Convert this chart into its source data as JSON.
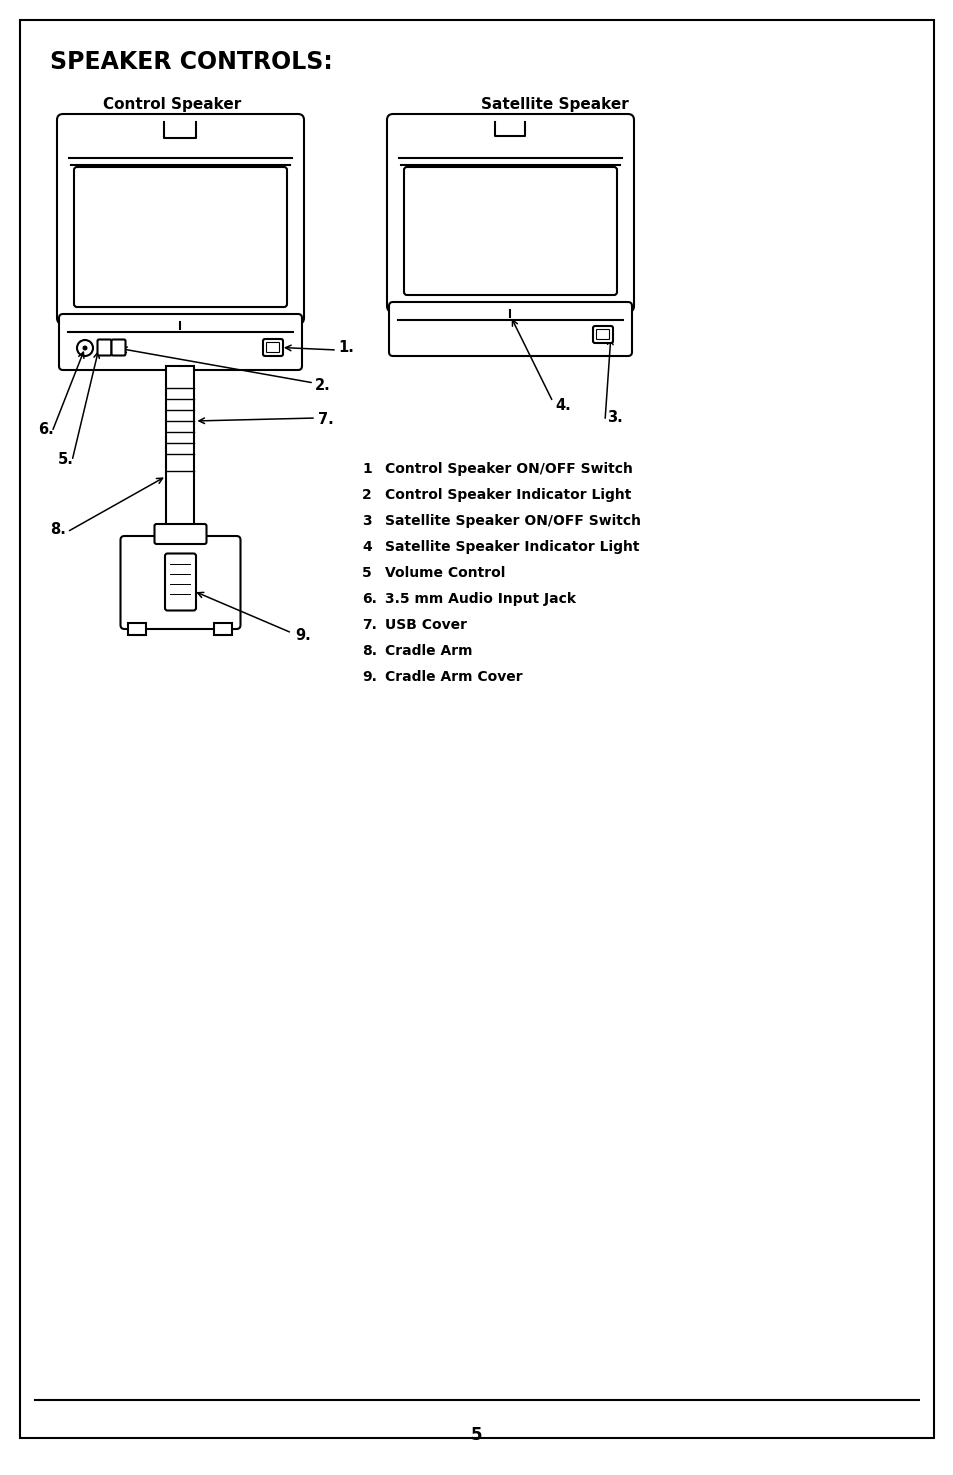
{
  "title": "SPEAKER CONTROLS:",
  "page_number": "5",
  "bg_color": "#ffffff",
  "border_color": "#000000",
  "legend_items": [
    [
      "1",
      "Control Speaker ON/OFF Switch"
    ],
    [
      "2",
      "Control Speaker Indicator Light"
    ],
    [
      "3",
      "Satellite Speaker ON/OFF Switch"
    ],
    [
      "4",
      "Satellite Speaker Indicator Light"
    ],
    [
      "5",
      "Volume Control"
    ],
    [
      "6.",
      "3.5 mm Audio Input Jack"
    ],
    [
      "7.",
      "USB Cover"
    ],
    [
      "8.",
      "Cradle Arm"
    ],
    [
      "9.",
      "Cradle Arm Cover"
    ]
  ],
  "control_speaker_label": "Control Speaker",
  "satellite_speaker_label": "Satellite Speaker"
}
